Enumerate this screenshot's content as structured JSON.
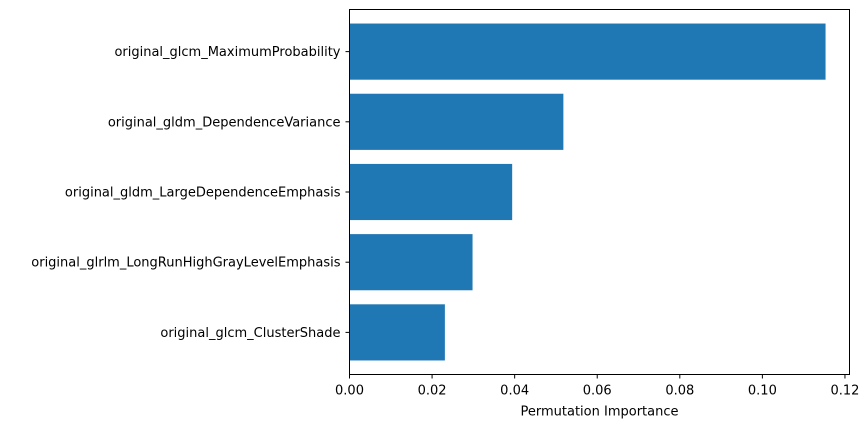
{
  "chart_data": {
    "type": "bar",
    "orientation": "horizontal",
    "categories": [
      "original_glcm_MaximumProbability",
      "original_gldm_DependenceVariance",
      "original_gldm_LargeDependenceEmphasis",
      "original_glrlm_LongRunHighGrayLevelEmphasis",
      "original_glcm_ClusterShade"
    ],
    "values": [
      0.1153,
      0.0518,
      0.0394,
      0.0298,
      0.0231
    ],
    "title": "",
    "xlabel": "Permutation Importance",
    "ylabel": "",
    "xlim": [
      0,
      0.1211
    ],
    "xticks": [
      0.0,
      0.02,
      0.04,
      0.06,
      0.08,
      0.1,
      0.12
    ],
    "xtick_labels": [
      "0.00",
      "0.02",
      "0.04",
      "0.06",
      "0.08",
      "0.10",
      "0.12"
    ],
    "bar_color": "#1f77b4",
    "grid": false,
    "legend": "none"
  }
}
